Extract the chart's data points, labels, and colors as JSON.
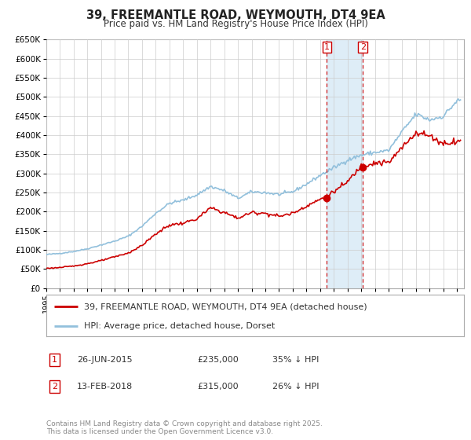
{
  "title": "39, FREEMANTLE ROAD, WEYMOUTH, DT4 9EA",
  "subtitle": "Price paid vs. HM Land Registry's House Price Index (HPI)",
  "ylabel_ticks": [
    "£0",
    "£50K",
    "£100K",
    "£150K",
    "£200K",
    "£250K",
    "£300K",
    "£350K",
    "£400K",
    "£450K",
    "£500K",
    "£550K",
    "£600K",
    "£650K"
  ],
  "ylim": [
    0,
    650000
  ],
  "ytick_vals": [
    0,
    50000,
    100000,
    150000,
    200000,
    250000,
    300000,
    350000,
    400000,
    450000,
    500000,
    550000,
    600000,
    650000
  ],
  "hpi_color": "#92c0dc",
  "price_color": "#cc0000",
  "marker_color": "#cc0000",
  "vline_color": "#cc0000",
  "highlight_color": "#deedf7",
  "legend_entries": [
    "39, FREEMANTLE ROAD, WEYMOUTH, DT4 9EA (detached house)",
    "HPI: Average price, detached house, Dorset"
  ],
  "transaction1": {
    "label": "1",
    "date": "26-JUN-2015",
    "price": "£235,000",
    "hpi": "35% ↓ HPI",
    "x": 2015.49
  },
  "transaction2": {
    "label": "2",
    "date": "13-FEB-2018",
    "price": "£315,000",
    "hpi": "26% ↓ HPI",
    "x": 2018.12
  },
  "t1_price_y": 235000,
  "t2_price_y": 315000,
  "footnote": "Contains HM Land Registry data © Crown copyright and database right 2025.\nThis data is licensed under the Open Government Licence v3.0.",
  "background_color": "#ffffff",
  "grid_color": "#cccccc",
  "xlim_start": 1995,
  "xlim_end": 2025.5
}
